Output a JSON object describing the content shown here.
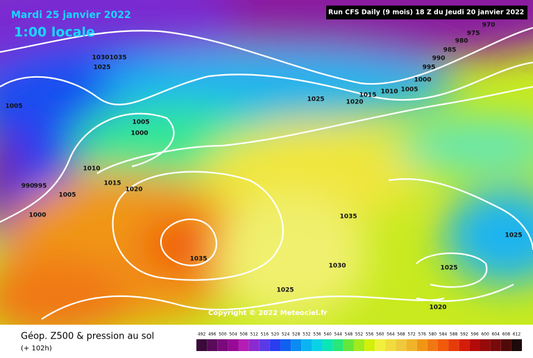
{
  "header": {
    "date": "Mardi 25 janvier 2022",
    "time": "1:00 locale",
    "run": "Run CFS Daily (9 mois) 18 Z du Jeudi 20 janvier 2022"
  },
  "isobar_labels": [
    "1030",
    "1035",
    "1025",
    "1005",
    "1005",
    "1000",
    "1010",
    "1015",
    "1020",
    "990",
    "995",
    "1005",
    "1000",
    "1035",
    "1025",
    "1020",
    "1015",
    "1010",
    "1005",
    "1000",
    "995",
    "990",
    "985",
    "980",
    "975",
    "970",
    "1035",
    "1030",
    "1025",
    "1020",
    "1025",
    "1025"
  ],
  "copyright": "Copyright © 2022 Meteociel.fr",
  "legend": {
    "title": "Géop. Z500 & pression au sol",
    "subtitle": "(+ 102h)",
    "scale": {
      "values": [
        492,
        496,
        500,
        504,
        508,
        512,
        516,
        520,
        524,
        528,
        532,
        536,
        540,
        544,
        548,
        552,
        556,
        560,
        564,
        568,
        572,
        576,
        580,
        584,
        588,
        592,
        596,
        600,
        604,
        608,
        612
      ],
      "colors": [
        "#3a0a3a",
        "#5a0a5a",
        "#7a0a7a",
        "#960a96",
        "#b41eb4",
        "#8a2ad0",
        "#5a3ae6",
        "#2a3ef0",
        "#1060f0",
        "#0a8cf0",
        "#0ab4f0",
        "#0ad2e6",
        "#0ae6b4",
        "#28e678",
        "#64e63c",
        "#a0ea1e",
        "#d2f00a",
        "#f0f03c",
        "#f0dc3c",
        "#f0c83c",
        "#f0b428",
        "#f09614",
        "#f07814",
        "#f05a0a",
        "#e63c0a",
        "#d21e0a",
        "#b40a0a",
        "#960a0a",
        "#780a0a",
        "#500a0a",
        "#1e0a0a"
      ]
    }
  }
}
